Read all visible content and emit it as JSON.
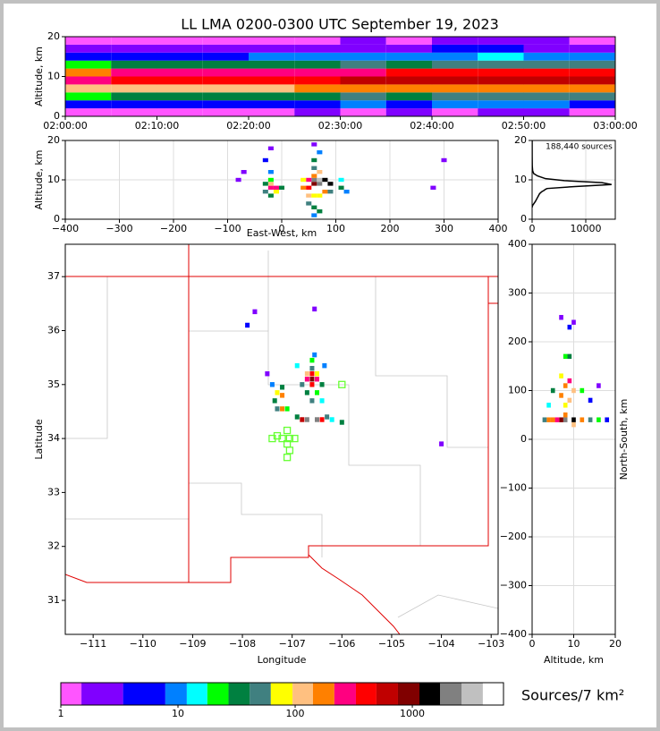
{
  "chart_data": [
    {
      "type": "heatmap",
      "title": "LL LMA 0200-0300 UTC September 19, 2023",
      "ylabel": "Altitude, km",
      "xlim": [
        "02:00:00",
        "03:00:00"
      ],
      "xticks": [
        "02:00:00",
        "02:10:00",
        "02:20:00",
        "02:30:00",
        "02:40:00",
        "02:50:00",
        "03:00:00"
      ],
      "ylim": [
        0,
        20
      ],
      "yticks": [
        0,
        10,
        20
      ],
      "grid": true,
      "x": [
        "02:00:00",
        "02:05:00",
        "02:10:00",
        "02:15:00",
        "02:20:00",
        "02:25:00",
        "02:30:00",
        "02:35:00",
        "02:40:00",
        "02:45:00",
        "02:50:00",
        "02:55:00"
      ],
      "y": [
        1,
        3,
        5,
        7,
        9,
        11,
        13,
        15,
        17,
        19
      ],
      "values": [
        [
          1,
          4,
          25,
          100,
          300,
          200,
          25,
          5,
          2,
          1
        ],
        [
          1,
          5,
          30,
          110,
          350,
          220,
          30,
          6,
          2,
          1
        ],
        [
          1,
          6,
          35,
          130,
          380,
          240,
          28,
          6,
          3,
          1
        ],
        [
          1,
          5,
          30,
          120,
          360,
          260,
          30,
          7,
          2,
          1
        ],
        [
          1,
          7,
          40,
          140,
          420,
          280,
          35,
          8,
          3,
          1
        ],
        [
          2,
          6,
          35,
          150,
          450,
          300,
          40,
          8,
          3,
          1
        ],
        [
          1,
          8,
          45,
          160,
          500,
          320,
          45,
          9,
          3,
          2
        ],
        [
          2,
          7,
          40,
          170,
          520,
          330,
          40,
          8,
          3,
          1
        ],
        [
          1,
          8,
          50,
          180,
          550,
          360,
          50,
          10,
          4,
          2
        ],
        [
          2,
          9,
          55,
          200,
          600,
          380,
          55,
          12,
          4,
          2
        ],
        [
          2,
          8,
          50,
          190,
          580,
          370,
          50,
          10,
          3,
          2
        ],
        [
          1,
          7,
          45,
          170,
          520,
          340,
          45,
          9,
          3,
          1
        ]
      ]
    },
    {
      "type": "cells",
      "xlabel": "East-West, km",
      "ylabel": "Altitude, km",
      "grid": true,
      "xlim": [
        -400,
        400
      ],
      "xticks": [
        {
          "value": -400,
          "label": "−400"
        },
        {
          "value": -300,
          "label": "−300"
        },
        {
          "value": -200,
          "label": "−200"
        },
        {
          "value": -100,
          "label": "−100"
        },
        0,
        100,
        200,
        300,
        400
      ],
      "ylim": [
        0,
        20
      ],
      "yticks": [
        0,
        10,
        20
      ],
      "cells": [
        [
          -20,
          8,
          300
        ],
        [
          -10,
          8,
          250
        ],
        [
          -20,
          9,
          100
        ],
        [
          -30,
          7,
          60
        ],
        [
          -10,
          7,
          80
        ],
        [
          -20,
          6,
          40
        ],
        [
          -30,
          9,
          30
        ],
        [
          0,
          8,
          40
        ],
        [
          -20,
          10,
          20
        ],
        [
          -20,
          12,
          10
        ],
        [
          -30,
          15,
          4
        ],
        [
          -20,
          18,
          2
        ],
        [
          -80,
          10,
          3
        ],
        [
          -70,
          12,
          2
        ],
        [
          40,
          8,
          150
        ],
        [
          50,
          8,
          400
        ],
        [
          60,
          9,
          900
        ],
        [
          70,
          9,
          2500
        ],
        [
          80,
          9,
          4500
        ],
        [
          90,
          9,
          1200
        ],
        [
          60,
          10,
          1800
        ],
        [
          70,
          10,
          3000
        ],
        [
          80,
          10,
          1500
        ],
        [
          50,
          10,
          300
        ],
        [
          40,
          10,
          80
        ],
        [
          60,
          11,
          200
        ],
        [
          70,
          12,
          120
        ],
        [
          60,
          13,
          60
        ],
        [
          60,
          15,
          30
        ],
        [
          70,
          17,
          10
        ],
        [
          60,
          19,
          3
        ],
        [
          50,
          6,
          100
        ],
        [
          60,
          6,
          80
        ],
        [
          70,
          6,
          90
        ],
        [
          80,
          7,
          200
        ],
        [
          50,
          4,
          50
        ],
        [
          60,
          3,
          40
        ],
        [
          70,
          2,
          30
        ],
        [
          60,
          1,
          10
        ],
        [
          90,
          7,
          60
        ],
        [
          110,
          8,
          40
        ],
        [
          110,
          10,
          15
        ],
        [
          120,
          7,
          8
        ],
        [
          300,
          15,
          2
        ],
        [
          280,
          8,
          2
        ]
      ]
    },
    {
      "type": "line",
      "annotation": "188,440 sources",
      "grid": true,
      "color": "#000000",
      "xlim": [
        0,
        15500
      ],
      "xticks": [
        0,
        10000
      ],
      "ylim": [
        0,
        20
      ],
      "yticks": [
        0,
        10,
        20
      ],
      "x": [
        0,
        100,
        600,
        1000,
        1400,
        1800,
        2200,
        2500,
        2800,
        8000,
        14800,
        13000,
        6000,
        2500,
        1000,
        300,
        100,
        30,
        10,
        5
      ],
      "y": [
        3,
        3.5,
        4.5,
        5.5,
        6.5,
        7,
        7.3,
        7.6,
        7.8,
        8.3,
        8.8,
        9.3,
        9.8,
        10.3,
        11,
        11.6,
        12.3,
        13.5,
        16,
        20
      ]
    },
    {
      "type": "map",
      "xlabel": "Longitude",
      "ylabel": "Latitude",
      "xlim": [
        -111.56,
        -102.86
      ],
      "xticks": [
        {
          "value": -111,
          "label": "−111"
        },
        {
          "value": -110,
          "label": "−110"
        },
        {
          "value": -109,
          "label": "−109"
        },
        {
          "value": -108,
          "label": "−108"
        },
        {
          "value": -107,
          "label": "−107"
        },
        {
          "value": -106,
          "label": "−106"
        },
        {
          "value": -105,
          "label": "−105"
        },
        {
          "value": -104,
          "label": "−104"
        },
        {
          "value": -103,
          "label": "−103"
        }
      ],
      "ylim": [
        30.37,
        37.6
      ],
      "yticks": [
        31,
        32,
        33,
        34,
        35,
        36,
        37
      ],
      "cells": [
        [
          -106.6,
          35.1,
          800
        ],
        [
          -106.7,
          35.1,
          300
        ],
        [
          -106.5,
          35.1,
          250
        ],
        [
          -106.6,
          35.2,
          400
        ],
        [
          -106.6,
          35.0,
          350
        ],
        [
          -106.7,
          35.2,
          120
        ],
        [
          -106.5,
          35.2,
          90
        ],
        [
          -106.6,
          35.3,
          60
        ],
        [
          -106.6,
          35.45,
          20
        ],
        [
          -106.55,
          35.55,
          8
        ],
        [
          -106.8,
          35.0,
          50
        ],
        [
          -106.4,
          35.0,
          40
        ],
        [
          -106.7,
          34.85,
          30
        ],
        [
          -106.5,
          34.85,
          25
        ],
        [
          -106.6,
          34.7,
          45
        ],
        [
          -106.4,
          34.7,
          15
        ],
        [
          -107.2,
          34.8,
          200
        ],
        [
          -107.3,
          34.85,
          80
        ],
        [
          -107.2,
          34.95,
          30
        ],
        [
          -107.35,
          34.7,
          40
        ],
        [
          -107.2,
          34.55,
          150
        ],
        [
          -107.3,
          34.55,
          60
        ],
        [
          -107.1,
          34.55,
          20
        ],
        [
          -107.4,
          35.0,
          10
        ],
        [
          -107.5,
          35.2,
          3
        ],
        [
          -106.8,
          34.35,
          600
        ],
        [
          -106.7,
          34.35,
          2500
        ],
        [
          -106.6,
          34.35,
          5000
        ],
        [
          -106.5,
          34.35,
          1800
        ],
        [
          -106.4,
          34.35,
          400
        ],
        [
          -106.3,
          34.4,
          60
        ],
        [
          -106.9,
          34.4,
          30
        ],
        [
          -106.2,
          34.35,
          15
        ],
        [
          -106.0,
          34.3,
          40
        ],
        [
          -107.9,
          36.1,
          4
        ],
        [
          -107.75,
          36.35,
          2
        ],
        [
          -106.55,
          36.4,
          2
        ],
        [
          -106.9,
          35.35,
          12
        ],
        [
          -106.35,
          35.35,
          8
        ],
        [
          -104.0,
          33.9,
          2
        ]
      ],
      "stations": {
        "color": "#66ff33",
        "lon": [
          -107.3,
          -107.2,
          -107.1,
          -107.05,
          -106.95,
          -107.05,
          -107.1,
          -107.4,
          -106.0,
          -107.1
        ],
        "lat": [
          34.05,
          34.0,
          34.15,
          34.0,
          34.0,
          33.78,
          33.65,
          34.0,
          35.0,
          33.9
        ]
      }
    },
    {
      "type": "cells",
      "xlabel": "Altitude, km",
      "ylabel": "North-South, km",
      "grid": true,
      "xlim": [
        0,
        20
      ],
      "xticks": [
        0,
        10,
        20
      ],
      "ylim": [
        -400,
        400
      ],
      "yticks": [
        {
          "value": -400,
          "label": "−400"
        },
        {
          "value": -300,
          "label": "−300"
        },
        {
          "value": -200,
          "label": "−200"
        },
        {
          "value": -100,
          "label": "−100"
        },
        0,
        100,
        200,
        300,
        400
      ],
      "cells": [
        [
          8,
          40,
          2500
        ],
        [
          9,
          40,
          4000
        ],
        [
          10,
          40,
          1500
        ],
        [
          7,
          40,
          800
        ],
        [
          6,
          40,
          300
        ],
        [
          5,
          40,
          200
        ],
        [
          4,
          40,
          150
        ],
        [
          3,
          40,
          60
        ],
        [
          12,
          40,
          150
        ],
        [
          14,
          40,
          60
        ],
        [
          16,
          40,
          20
        ],
        [
          18,
          40,
          5
        ],
        [
          8,
          50,
          200
        ],
        [
          10,
          30,
          100
        ],
        [
          8,
          70,
          80
        ],
        [
          9,
          80,
          120
        ],
        [
          7,
          90,
          150
        ],
        [
          10,
          100,
          100
        ],
        [
          8,
          110,
          200
        ],
        [
          9,
          120,
          300
        ],
        [
          7,
          130,
          90
        ],
        [
          5,
          100,
          30
        ],
        [
          12,
          100,
          20
        ],
        [
          14,
          80,
          6
        ],
        [
          16,
          110,
          3
        ],
        [
          4,
          70,
          15
        ],
        [
          8,
          170,
          20
        ],
        [
          9,
          170,
          30
        ],
        [
          7,
          250,
          3
        ],
        [
          10,
          240,
          2
        ],
        [
          9,
          230,
          4
        ]
      ]
    }
  ],
  "colorbar": {
    "label": "Sources/7 km²",
    "ticks": [
      1,
      10,
      100,
      1000
    ],
    "bounds": [
      1,
      1.5,
      3.4,
      7.8,
      11.9,
      17.8,
      27,
      41,
      62,
      95,
      142,
      216,
      330,
      494,
      754,
      1150,
      1730,
      2640,
      4000,
      6000
    ],
    "colors": [
      "#ff55ff",
      "#8000ff",
      "#0000ff",
      "#0080ff",
      "#00ffff",
      "#00ff00",
      "#008040",
      "#408080",
      "#ffff00",
      "#ffc080",
      "#ff8000",
      "#ff0080",
      "#ff0000",
      "#c00000",
      "#800000",
      "#000000",
      "#808080",
      "#c0c0c0",
      "#ffffff"
    ]
  }
}
